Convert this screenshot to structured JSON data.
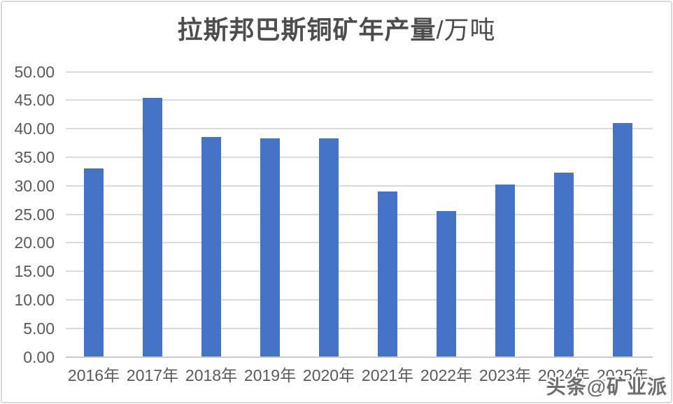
{
  "chart_data": {
    "type": "bar",
    "title": "拉斯邦巴斯铜矿年产量/万吨",
    "title_main": "拉斯邦巴斯铜矿年产量",
    "title_unit": "/万吨",
    "categories": [
      "2016年",
      "2017年",
      "2018年",
      "2019年",
      "2020年",
      "2021年",
      "2022年",
      "2023年",
      "2024年",
      "2025年"
    ],
    "values": [
      33.0,
      45.4,
      38.5,
      38.3,
      38.3,
      29.0,
      25.5,
      30.2,
      32.3,
      41.0
    ],
    "xlabel": "",
    "ylabel": "",
    "ylim": [
      0,
      50
    ],
    "ytick_step": 5,
    "ytick_labels": [
      "0.00",
      "5.00",
      "10.00",
      "15.00",
      "20.00",
      "25.00",
      "30.00",
      "35.00",
      "40.00",
      "45.00",
      "50.00"
    ],
    "grid": true,
    "legend": false,
    "colors": {
      "bar": "#4472C4",
      "gridline": "#DBDBDB",
      "axis_line": "#C9C9C9",
      "tick_label": "#595959",
      "title": "#4d4d4d",
      "background": "#FFFFFF",
      "border": "#D9D9D9"
    }
  },
  "watermark": {
    "text": "头条@矿业派"
  }
}
